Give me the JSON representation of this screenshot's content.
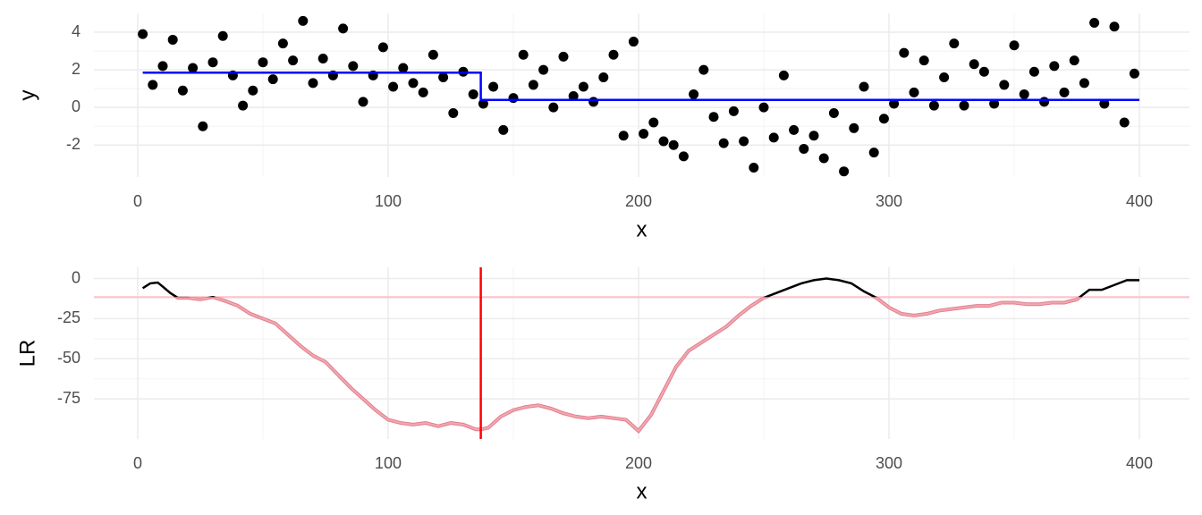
{
  "chart_data": [
    {
      "type": "scatter",
      "x_label": "x",
      "y_label": "y",
      "xlim": [
        -17.5,
        420
      ],
      "xticks": [
        0,
        100,
        200,
        300,
        400
      ],
      "ylim": [
        -3.7,
        5
      ],
      "yticks": [
        -2,
        0,
        2,
        4
      ],
      "grid": true,
      "series": [
        {
          "type": "scatter",
          "color": "#000000",
          "x": [
            2,
            6,
            10,
            14,
            18,
            22,
            26,
            30,
            34,
            38,
            42,
            46,
            50,
            54,
            58,
            62,
            66,
            70,
            74,
            78,
            82,
            86,
            90,
            94,
            98,
            102,
            106,
            110,
            114,
            118,
            122,
            126,
            130,
            134,
            138,
            142,
            146,
            150,
            154,
            158,
            162,
            166,
            170,
            174,
            178,
            182,
            186,
            190,
            194,
            198,
            202,
            206,
            210,
            214,
            218,
            222,
            226,
            230,
            234,
            238,
            242,
            246,
            250,
            254,
            258,
            262,
            266,
            270,
            274,
            278,
            282,
            286,
            290,
            294,
            298,
            302,
            306,
            310,
            314,
            318,
            322,
            326,
            330,
            334,
            338,
            342,
            346,
            350,
            354,
            358,
            362,
            366,
            370,
            374,
            378,
            382,
            386,
            390,
            394,
            398
          ],
          "values": [
            3.9,
            1.2,
            2.2,
            3.6,
            0.9,
            2.1,
            -1.0,
            2.4,
            3.8,
            1.7,
            0.1,
            0.9,
            2.4,
            1.5,
            3.4,
            2.5,
            4.6,
            1.3,
            2.6,
            1.7,
            4.2,
            2.2,
            0.3,
            1.7,
            3.2,
            1.1,
            2.1,
            1.3,
            0.8,
            2.8,
            1.6,
            -0.3,
            1.9,
            0.7,
            0.2,
            1.1,
            -1.2,
            0.5,
            2.8,
            1.2,
            2.0,
            0.0,
            2.7,
            0.6,
            1.1,
            0.3,
            1.6,
            2.8,
            -1.5,
            3.5,
            -1.4,
            -0.8,
            -1.8,
            -2.0,
            -2.6,
            0.7,
            2.0,
            -0.5,
            -1.9,
            -0.2,
            -1.8,
            -3.2,
            0.0,
            -1.6,
            1.7,
            -1.2,
            -2.2,
            -1.5,
            -2.7,
            -0.3,
            -3.4,
            -1.1,
            1.1,
            -2.4,
            -0.6,
            0.2,
            2.9,
            0.8,
            2.5,
            0.1,
            1.6,
            3.4,
            0.1,
            2.3,
            1.9,
            0.2,
            1.2,
            3.3,
            0.7,
            1.9,
            0.3,
            2.2,
            0.8,
            2.5,
            1.3,
            4.5,
            0.2,
            4.3,
            -0.8,
            1.8
          ]
        },
        {
          "type": "line",
          "color": "#0000ff",
          "x": [
            2,
            137,
            137,
            400
          ],
          "values": [
            1.85,
            1.85,
            0.4,
            0.4
          ]
        }
      ]
    },
    {
      "type": "line",
      "x_label": "x",
      "y_label": "LR",
      "xlim": [
        -17.5,
        420
      ],
      "xticks": [
        0,
        100,
        200,
        300,
        400
      ],
      "ylim": [
        -100,
        7
      ],
      "yticks": [
        -75,
        -50,
        -25,
        0
      ],
      "grid": true,
      "hline": {
        "value": -11.5,
        "color": "#ffc0cb"
      },
      "vline": {
        "value": 137,
        "color": "#ff0000"
      },
      "series": [
        {
          "type": "line",
          "color": "#000000",
          "below_color": "#f4a7b0",
          "x": [
            2,
            5,
            8,
            10,
            13,
            16,
            20,
            25,
            30,
            35,
            40,
            45,
            50,
            55,
            60,
            65,
            70,
            75,
            80,
            85,
            90,
            95,
            100,
            105,
            110,
            115,
            120,
            125,
            130,
            135,
            137,
            140,
            145,
            150,
            155,
            160,
            165,
            170,
            175,
            180,
            185,
            190,
            195,
            200,
            205,
            210,
            215,
            220,
            225,
            230,
            235,
            240,
            245,
            250,
            255,
            260,
            265,
            270,
            275,
            280,
            285,
            290,
            295,
            300,
            305,
            310,
            315,
            320,
            325,
            330,
            335,
            340,
            345,
            350,
            355,
            360,
            365,
            370,
            375,
            380,
            385,
            390,
            395,
            400
          ],
          "values": [
            -6,
            -3,
            -2.5,
            -5,
            -9,
            -12,
            -12,
            -13,
            -11.5,
            -14,
            -17,
            -22,
            -25,
            -28,
            -35,
            -42,
            -48,
            -52,
            -60,
            -68,
            -75,
            -82,
            -88,
            -90,
            -91,
            -90,
            -92,
            -90,
            -91,
            -94,
            -94,
            -93,
            -86,
            -82,
            -80,
            -79,
            -81,
            -84,
            -86,
            -87,
            -86,
            -87,
            -88,
            -95,
            -85,
            -70,
            -55,
            -45,
            -40,
            -35,
            -30,
            -23,
            -17,
            -12,
            -9,
            -6,
            -3,
            -1,
            0,
            -1,
            -3,
            -8,
            -12,
            -18,
            -22,
            -23,
            -22,
            -20,
            -19,
            -18,
            -17,
            -17,
            -15,
            -15,
            -16,
            -16,
            -15,
            -15,
            -13,
            -7,
            -7,
            -4,
            -1,
            -1
          ]
        }
      ]
    }
  ]
}
